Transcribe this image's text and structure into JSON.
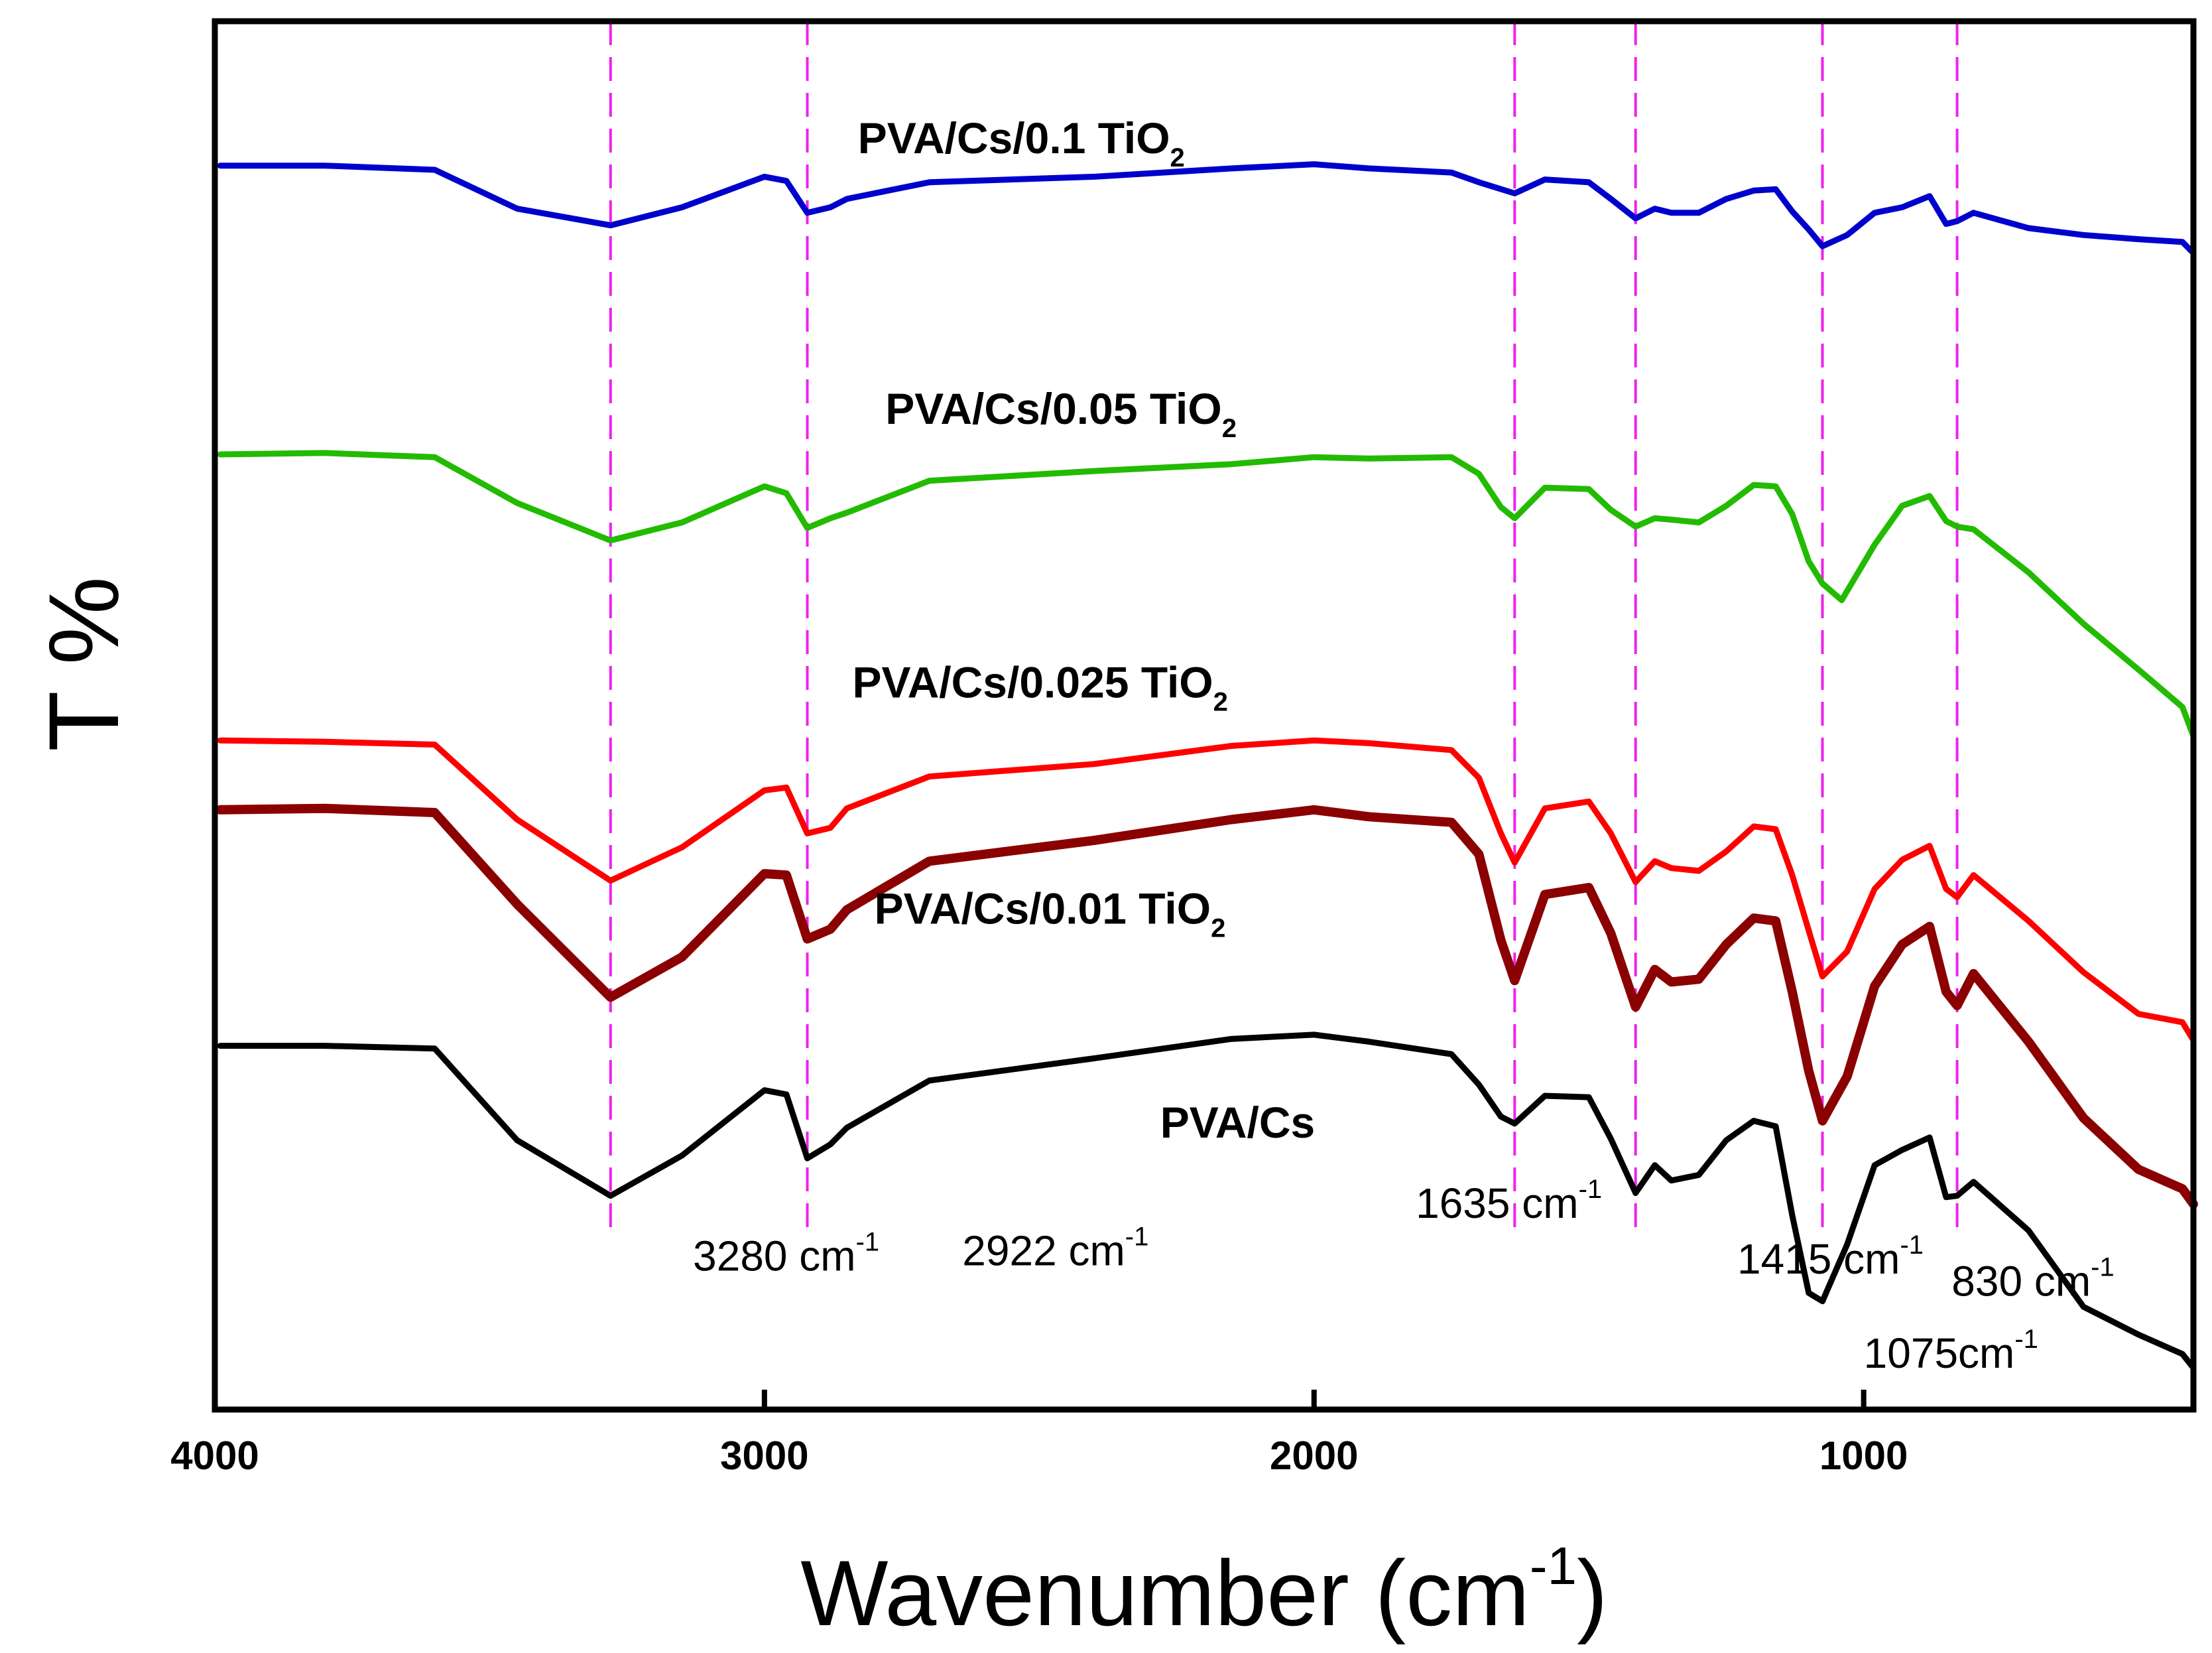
{
  "chart_data": {
    "type": "line",
    "title": "",
    "xlabel": "Wavenumber (cm",
    "xlabel_sup": "-1",
    "xlabel_end": ")",
    "ylabel": "T %",
    "xlim": [
      4000,
      400
    ],
    "ylim": [
      0,
      100
    ],
    "x_ticks": [
      {
        "value": 4000,
        "label": "4000"
      },
      {
        "value": 3000,
        "label": "3000"
      },
      {
        "value": 2000,
        "label": "2000"
      },
      {
        "value": 1000,
        "label": "1000"
      }
    ],
    "series": [
      {
        "name": "PVA/Cs/0.1 TiO",
        "name_sub": "2",
        "color": "#0000cc",
        "label_at": [
          2830,
          90.5
        ],
        "points": [
          [
            3990,
            89.6
          ],
          [
            3800,
            89.6
          ],
          [
            3600,
            89.3
          ],
          [
            3450,
            86.5
          ],
          [
            3280,
            85.3
          ],
          [
            3150,
            86.6
          ],
          [
            3000,
            88.8
          ],
          [
            2960,
            88.5
          ],
          [
            2922,
            86.2
          ],
          [
            2880,
            86.6
          ],
          [
            2850,
            87.2
          ],
          [
            2700,
            88.4
          ],
          [
            2400,
            88.8
          ],
          [
            2150,
            89.4
          ],
          [
            2000,
            89.7
          ],
          [
            1900,
            89.4
          ],
          [
            1750,
            89.1
          ],
          [
            1700,
            88.4
          ],
          [
            1635,
            87.6
          ],
          [
            1580,
            88.6
          ],
          [
            1500,
            88.4
          ],
          [
            1460,
            87.2
          ],
          [
            1415,
            85.8
          ],
          [
            1380,
            86.5
          ],
          [
            1350,
            86.2
          ],
          [
            1300,
            86.2
          ],
          [
            1250,
            87.2
          ],
          [
            1200,
            87.8
          ],
          [
            1160,
            87.9
          ],
          [
            1130,
            86.3
          ],
          [
            1100,
            85.0
          ],
          [
            1075,
            83.8
          ],
          [
            1030,
            84.6
          ],
          [
            980,
            86.2
          ],
          [
            930,
            86.6
          ],
          [
            880,
            87.4
          ],
          [
            850,
            85.4
          ],
          [
            830,
            85.6
          ],
          [
            800,
            86.2
          ],
          [
            700,
            85.1
          ],
          [
            600,
            84.6
          ],
          [
            500,
            84.3
          ],
          [
            420,
            84.1
          ],
          [
            400,
            83.3
          ]
        ]
      },
      {
        "name": "PVA/Cs/0.05 TiO",
        "name_sub": "2",
        "color": "#22bb00",
        "label_at": [
          2780,
          71.0
        ],
        "points": [
          [
            3990,
            68.8
          ],
          [
            3800,
            68.9
          ],
          [
            3600,
            68.6
          ],
          [
            3450,
            65.3
          ],
          [
            3280,
            62.6
          ],
          [
            3150,
            63.9
          ],
          [
            3000,
            66.5
          ],
          [
            2960,
            66.0
          ],
          [
            2922,
            63.5
          ],
          [
            2880,
            64.2
          ],
          [
            2850,
            64.6
          ],
          [
            2700,
            66.9
          ],
          [
            2400,
            67.6
          ],
          [
            2150,
            68.1
          ],
          [
            2000,
            68.6
          ],
          [
            1900,
            68.5
          ],
          [
            1750,
            68.6
          ],
          [
            1700,
            67.4
          ],
          [
            1660,
            65.0
          ],
          [
            1635,
            64.2
          ],
          [
            1580,
            66.4
          ],
          [
            1500,
            66.3
          ],
          [
            1460,
            64.8
          ],
          [
            1415,
            63.6
          ],
          [
            1380,
            64.2
          ],
          [
            1350,
            64.1
          ],
          [
            1300,
            63.9
          ],
          [
            1250,
            65.1
          ],
          [
            1200,
            66.6
          ],
          [
            1160,
            66.5
          ],
          [
            1130,
            64.5
          ],
          [
            1100,
            61.1
          ],
          [
            1075,
            59.5
          ],
          [
            1040,
            58.3
          ],
          [
            980,
            62.3
          ],
          [
            930,
            65.1
          ],
          [
            880,
            65.8
          ],
          [
            850,
            64.0
          ],
          [
            830,
            63.6
          ],
          [
            800,
            63.4
          ],
          [
            700,
            60.3
          ],
          [
            600,
            56.6
          ],
          [
            500,
            53.3
          ],
          [
            420,
            50.6
          ],
          [
            400,
            48.5
          ]
        ]
      },
      {
        "name": "PVA/Cs/0.025 TiO",
        "name_sub": "2",
        "color": "#ff0000",
        "label_at": [
          2840,
          51.3
        ],
        "points": [
          [
            3990,
            48.2
          ],
          [
            3800,
            48.1
          ],
          [
            3600,
            47.9
          ],
          [
            3450,
            42.5
          ],
          [
            3280,
            38.1
          ],
          [
            3150,
            40.5
          ],
          [
            3000,
            44.6
          ],
          [
            2960,
            44.8
          ],
          [
            2922,
            41.5
          ],
          [
            2880,
            41.9
          ],
          [
            2850,
            43.3
          ],
          [
            2700,
            45.6
          ],
          [
            2400,
            46.5
          ],
          [
            2150,
            47.8
          ],
          [
            2000,
            48.2
          ],
          [
            1900,
            48.0
          ],
          [
            1750,
            47.5
          ],
          [
            1700,
            45.5
          ],
          [
            1660,
            41.5
          ],
          [
            1635,
            39.4
          ],
          [
            1580,
            43.3
          ],
          [
            1500,
            43.8
          ],
          [
            1460,
            41.5
          ],
          [
            1415,
            38.0
          ],
          [
            1380,
            39.5
          ],
          [
            1350,
            39.0
          ],
          [
            1300,
            38.8
          ],
          [
            1250,
            40.2
          ],
          [
            1200,
            42.0
          ],
          [
            1160,
            41.8
          ],
          [
            1130,
            38.5
          ],
          [
            1100,
            34.5
          ],
          [
            1075,
            31.2
          ],
          [
            1030,
            33.0
          ],
          [
            980,
            37.5
          ],
          [
            930,
            39.6
          ],
          [
            880,
            40.6
          ],
          [
            850,
            37.5
          ],
          [
            830,
            36.9
          ],
          [
            800,
            38.5
          ],
          [
            700,
            35.2
          ],
          [
            600,
            31.5
          ],
          [
            500,
            28.5
          ],
          [
            420,
            27.9
          ],
          [
            400,
            26.6
          ]
        ]
      },
      {
        "name": "PVA/Cs/0.01 TiO",
        "name_sub": "2",
        "color": "#8b0000",
        "label_at": [
          2800,
          35.0
        ],
        "points": [
          [
            3990,
            43.2
          ],
          [
            3800,
            43.3
          ],
          [
            3600,
            43.0
          ],
          [
            3450,
            36.4
          ],
          [
            3280,
            29.7
          ],
          [
            3150,
            32.6
          ],
          [
            3000,
            38.6
          ],
          [
            2960,
            38.5
          ],
          [
            2922,
            33.9
          ],
          [
            2880,
            34.6
          ],
          [
            2850,
            36.0
          ],
          [
            2700,
            39.5
          ],
          [
            2400,
            41.0
          ],
          [
            2150,
            42.5
          ],
          [
            2000,
            43.2
          ],
          [
            1900,
            42.7
          ],
          [
            1750,
            42.3
          ],
          [
            1700,
            40.0
          ],
          [
            1660,
            33.8
          ],
          [
            1635,
            30.9
          ],
          [
            1580,
            37.1
          ],
          [
            1500,
            37.6
          ],
          [
            1460,
            34.3
          ],
          [
            1415,
            29.0
          ],
          [
            1380,
            31.7
          ],
          [
            1350,
            30.8
          ],
          [
            1300,
            31.0
          ],
          [
            1250,
            33.5
          ],
          [
            1200,
            35.4
          ],
          [
            1160,
            35.2
          ],
          [
            1130,
            30.1
          ],
          [
            1100,
            24.4
          ],
          [
            1075,
            20.8
          ],
          [
            1030,
            24.0
          ],
          [
            980,
            30.5
          ],
          [
            930,
            33.5
          ],
          [
            880,
            34.8
          ],
          [
            850,
            30.1
          ],
          [
            830,
            29.1
          ],
          [
            800,
            31.4
          ],
          [
            700,
            26.5
          ],
          [
            600,
            21.0
          ],
          [
            500,
            17.3
          ],
          [
            420,
            15.9
          ],
          [
            400,
            14.8
          ]
        ]
      },
      {
        "name": "PVA/Cs",
        "color": "#000000",
        "label_at": [
          2280,
          19.6
        ],
        "points": [
          [
            3990,
            26.2
          ],
          [
            3800,
            26.2
          ],
          [
            3600,
            26.0
          ],
          [
            3450,
            19.4
          ],
          [
            3280,
            15.4
          ],
          [
            3150,
            18.3
          ],
          [
            3000,
            23.0
          ],
          [
            2960,
            22.7
          ],
          [
            2922,
            18.1
          ],
          [
            2880,
            19.1
          ],
          [
            2850,
            20.3
          ],
          [
            2700,
            23.7
          ],
          [
            2400,
            25.3
          ],
          [
            2150,
            26.7
          ],
          [
            2000,
            27.0
          ],
          [
            1900,
            26.5
          ],
          [
            1750,
            25.6
          ],
          [
            1700,
            23.4
          ],
          [
            1660,
            21.1
          ],
          [
            1635,
            20.6
          ],
          [
            1580,
            22.6
          ],
          [
            1500,
            22.5
          ],
          [
            1460,
            19.5
          ],
          [
            1415,
            15.6
          ],
          [
            1380,
            17.6
          ],
          [
            1350,
            16.5
          ],
          [
            1300,
            16.9
          ],
          [
            1250,
            19.4
          ],
          [
            1200,
            20.8
          ],
          [
            1160,
            20.4
          ],
          [
            1130,
            14.0
          ],
          [
            1100,
            8.4
          ],
          [
            1075,
            7.8
          ],
          [
            1030,
            11.9
          ],
          [
            980,
            17.6
          ],
          [
            930,
            18.7
          ],
          [
            880,
            19.6
          ],
          [
            850,
            15.3
          ],
          [
            830,
            15.4
          ],
          [
            800,
            16.4
          ],
          [
            700,
            12.9
          ],
          [
            600,
            7.4
          ],
          [
            500,
            5.4
          ],
          [
            420,
            4.0
          ],
          [
            400,
            3.0
          ]
        ]
      }
    ],
    "peak_lines": [
      {
        "value": 3280,
        "label": "3280 cm",
        "label_sup": "-1",
        "label_at": [
          3130,
          10.0
        ]
      },
      {
        "value": 2922,
        "label": "2922 cm",
        "label_sup": "-1",
        "label_at": [
          2640,
          10.4
        ]
      },
      {
        "value": 1635,
        "label": "1635 cm",
        "label_sup": "-1",
        "label_at": [
          1815,
          13.8
        ]
      },
      {
        "value": 1415,
        "label": "1415 cm",
        "label_sup": "-1",
        "label_at": [
          1230,
          9.8
        ]
      },
      {
        "value": 830,
        "label": "830 cm",
        "label_sup": "-1",
        "label_at": [
          840,
          8.2
        ]
      },
      {
        "value": 1075,
        "label": "1075cm",
        "label_sup": "-1",
        "label_at": [
          1000,
          3.0
        ]
      }
    ],
    "peak_line_color": "#ee22ee",
    "axis_color": "#000000"
  }
}
